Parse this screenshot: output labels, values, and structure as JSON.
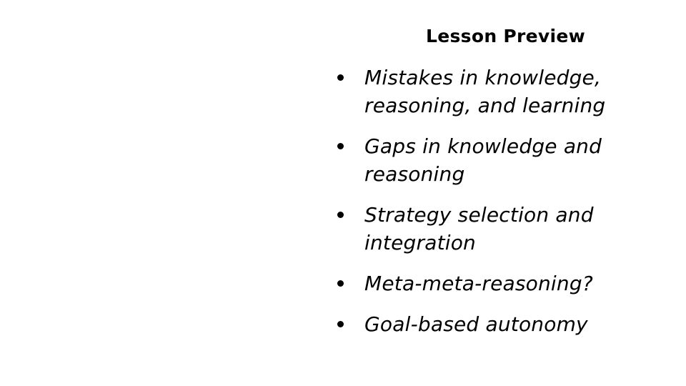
{
  "slide": {
    "title": "Lesson Preview",
    "bullets": [
      "Mistakes in knowledge, reasoning, and learning",
      "Gaps in knowledge and reasoning",
      "Strategy selection and integration",
      "Meta-meta-reasoning?",
      "Goal-based autonomy"
    ]
  }
}
